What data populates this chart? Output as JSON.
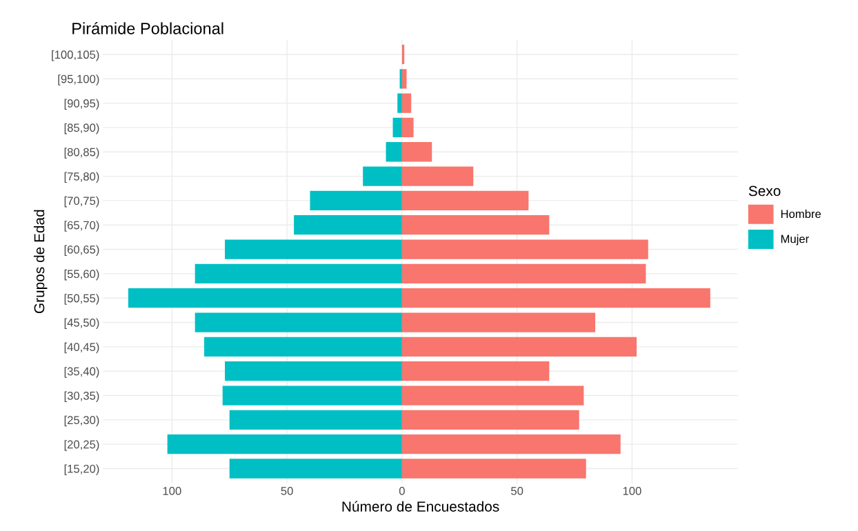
{
  "chart_data": {
    "type": "bar",
    "orientation": "horizontal",
    "stacked": true,
    "title": "Pirámide Poblacional",
    "xlabel": "Número de Encuestados",
    "ylabel": "Grupos de Edad",
    "legend_title": "Sexo",
    "legend": "right",
    "grid": true,
    "categories": [
      "[100,105)",
      "[95,100)",
      "[90,95)",
      "[85,90)",
      "[80,85)",
      "[75,80)",
      "[70,75)",
      "[65,70)",
      "[60,65)",
      "[55,60)",
      "[50,55)",
      "[45,50)",
      "[40,45)",
      "[35,40)",
      "[30,35)",
      "[25,30)",
      "[20,25)",
      "[15,20)"
    ],
    "series": [
      {
        "name": "Hombre",
        "color": "#f8766d",
        "values": [
          1,
          2,
          4,
          5,
          13,
          31,
          55,
          64,
          107,
          106,
          134,
          84,
          102,
          64,
          79,
          77,
          95,
          80
        ]
      },
      {
        "name": "Mujer",
        "color": "#00bfc4",
        "values": [
          0,
          -1,
          -2,
          -4,
          -7,
          -17,
          -40,
          -47,
          -77,
          -90,
          -119,
          -90,
          -86,
          -77,
          -78,
          -75,
          -102,
          -75
        ]
      }
    ],
    "xlim": [
      -130,
      146
    ],
    "xticks": [
      {
        "value": -100,
        "label": "100"
      },
      {
        "value": -50,
        "label": "50"
      },
      0,
      50,
      100
    ]
  }
}
